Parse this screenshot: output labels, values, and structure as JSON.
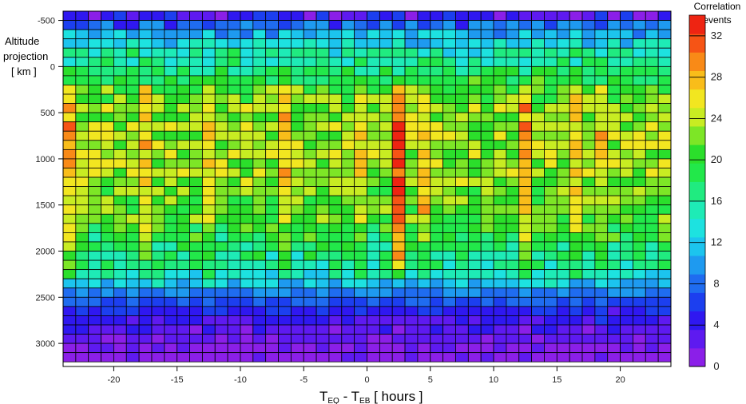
{
  "chart_data": {
    "type": "heatmap",
    "title": "",
    "xlabel": "T",
    "xlabel_sub1": "EQ",
    "xlabel_mid": " - T",
    "xlabel_sub2": "EB",
    "xlabel_units": "  [ hours ]",
    "ylabel_lines": [
      "Altitude",
      "projection",
      "[ km ]"
    ],
    "colorbar_label_lines": [
      "Correlation",
      "events"
    ],
    "xlim": [
      -24,
      24
    ],
    "ylim": [
      -600,
      3250
    ],
    "x_bin_width": 1,
    "y_bin_width": 100,
    "y_bin_start": -600,
    "x_ticks": [
      -20,
      -15,
      -10,
      -5,
      0,
      5,
      10,
      15,
      20
    ],
    "y_ticks": [
      -500,
      0,
      500,
      1000,
      1500,
      2000,
      2500,
      3000
    ],
    "colorbar_ticks": [
      0,
      4,
      8,
      12,
      16,
      20,
      24,
      28,
      32
    ],
    "z_range": [
      0,
      34
    ],
    "colorscale": [
      "#8B1FE8",
      "#5E1AF0",
      "#2F18F0",
      "#1C3FEF",
      "#1F6CF0",
      "#1E9AF0",
      "#1CC4EE",
      "#1DE2E0",
      "#1EEBB6",
      "#20EB80",
      "#22E84A",
      "#2BDF2B",
      "#7DE626",
      "#C8EC22",
      "#F2E620",
      "#F9BD1A",
      "#F98A17",
      "#F65415",
      "#EE2412"
    ],
    "z_profile_by_altitude": [
      {
        "y": -600,
        "z": 4
      },
      {
        "y": -500,
        "z": 7
      },
      {
        "y": -400,
        "z": 11
      },
      {
        "y": -300,
        "z": 13
      },
      {
        "y": -200,
        "z": 15
      },
      {
        "y": -100,
        "z": 16
      },
      {
        "y": 0,
        "z": 18
      },
      {
        "y": 100,
        "z": 19
      },
      {
        "y": 200,
        "z": 21
      },
      {
        "y": 300,
        "z": 22
      },
      {
        "y": 400,
        "z": 23
      },
      {
        "y": 500,
        "z": 23
      },
      {
        "y": 600,
        "z": 23
      },
      {
        "y": 700,
        "z": 23
      },
      {
        "y": 800,
        "z": 23
      },
      {
        "y": 900,
        "z": 23
      },
      {
        "y": 1000,
        "z": 23
      },
      {
        "y": 1100,
        "z": 23
      },
      {
        "y": 1200,
        "z": 23
      },
      {
        "y": 1300,
        "z": 22
      },
      {
        "y": 1400,
        "z": 22
      },
      {
        "y": 1500,
        "z": 21
      },
      {
        "y": 1600,
        "z": 21
      },
      {
        "y": 1700,
        "z": 20
      },
      {
        "y": 1800,
        "z": 19
      },
      {
        "y": 1900,
        "z": 18
      },
      {
        "y": 2000,
        "z": 17
      },
      {
        "y": 2100,
        "z": 16
      },
      {
        "y": 2200,
        "z": 14
      },
      {
        "y": 2300,
        "z": 12
      },
      {
        "y": 2400,
        "z": 9
      },
      {
        "y": 2500,
        "z": 7
      },
      {
        "y": 2600,
        "z": 5
      },
      {
        "y": 2700,
        "z": 4
      },
      {
        "y": 2800,
        "z": 3
      },
      {
        "y": 2900,
        "z": 2
      },
      {
        "y": 3000,
        "z": 1
      },
      {
        "y": 3100,
        "z": 1
      }
    ],
    "high_columns": [
      {
        "x": -23.5,
        "z_boost": 5
      },
      {
        "x": -17.5,
        "z_boost": 4
      },
      {
        "x": -12.5,
        "z_boost": 3
      },
      {
        "x": -6.5,
        "z_boost": 4
      },
      {
        "x": -0.5,
        "z_boost": 3
      },
      {
        "x": 2.5,
        "z_boost": 9
      },
      {
        "x": 4.5,
        "z_boost": 4
      },
      {
        "x": 12.5,
        "z_boost": 5
      },
      {
        "x": 16.5,
        "z_boost": 3
      },
      {
        "x": 18.5,
        "z_boost": 3
      }
    ],
    "peak_cells": [
      {
        "x": 2.5,
        "y": 1250,
        "z": 33
      },
      {
        "x": 2.5,
        "y": 1350,
        "z": 33
      },
      {
        "x": 2.5,
        "y": 1550,
        "z": 32
      },
      {
        "x": 2.5,
        "y": 1650,
        "z": 32
      },
      {
        "x": 2.5,
        "y": 1450,
        "z": 31
      },
      {
        "x": -23.5,
        "y": 750,
        "z": 29
      },
      {
        "x": -23.5,
        "y": 1050,
        "z": 29
      },
      {
        "x": -6.5,
        "y": 1150,
        "z": 29
      },
      {
        "x": 12.5,
        "y": 750,
        "z": 29
      },
      {
        "x": 4.5,
        "y": 1550,
        "z": 29
      }
    ]
  }
}
